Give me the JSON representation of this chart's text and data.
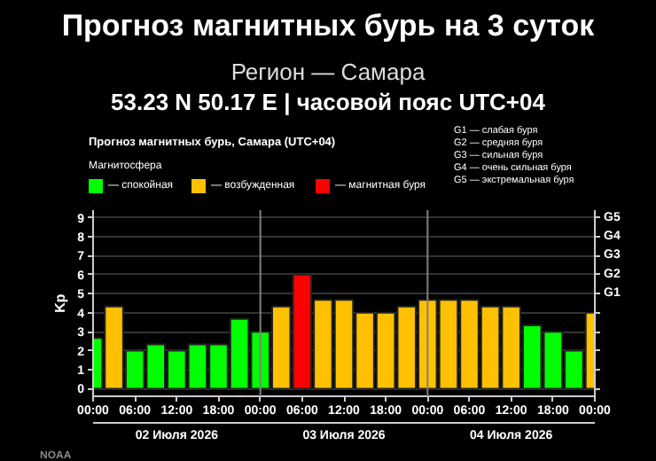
{
  "chart_data": {
    "type": "bar",
    "title": "Прогноз магнитных бурь, Самара (UTC+04)",
    "legend_title": "Магнитосфера",
    "ylabel": "Kp",
    "x": [
      "2026-07-02T00:00",
      "2026-07-02T03:00",
      "2026-07-02T06:00",
      "2026-07-02T09:00",
      "2026-07-02T12:00",
      "2026-07-02T15:00",
      "2026-07-02T18:00",
      "2026-07-02T21:00",
      "2026-07-03T00:00",
      "2026-07-03T03:00",
      "2026-07-03T06:00",
      "2026-07-03T09:00",
      "2026-07-03T12:00",
      "2026-07-03T15:00",
      "2026-07-03T18:00",
      "2026-07-03T21:00",
      "2026-07-04T00:00",
      "2026-07-04T03:00",
      "2026-07-04T06:00",
      "2026-07-04T09:00",
      "2026-07-04T12:00",
      "2026-07-04T15:00",
      "2026-07-04T18:00",
      "2026-07-04T21:00",
      "2026-07-05T00:00"
    ],
    "series": [
      {
        "name": "— спокойная",
        "color": "#00ff00",
        "values": [
          2.67,
          null,
          2,
          2.33,
          2,
          2.33,
          2.33,
          3.67,
          3,
          null,
          null,
          null,
          null,
          null,
          null,
          null,
          null,
          null,
          null,
          null,
          null,
          3.33,
          3,
          2,
          null
        ]
      },
      {
        "name": "— возбужденная",
        "color": "#ffc000",
        "values": [
          null,
          4.33,
          null,
          null,
          null,
          null,
          null,
          null,
          null,
          4.33,
          null,
          4.67,
          4.67,
          4,
          4,
          4.33,
          4.67,
          4.67,
          4.67,
          4.33,
          4.33,
          null,
          null,
          null,
          4
        ]
      },
      {
        "name": "— магнитная буря",
        "color": "#ff0000",
        "values": [
          null,
          null,
          null,
          null,
          null,
          null,
          null,
          null,
          null,
          null,
          6,
          null,
          null,
          null,
          null,
          null,
          null,
          null,
          null,
          null,
          null,
          null,
          null,
          null,
          null
        ]
      }
    ],
    "xlim": [
      "2026-07-02T00:00",
      "2026-07-05T00:00"
    ],
    "xticks": [
      {
        "value": "2026-07-02T00:00",
        "label": "00:00"
      },
      {
        "value": "2026-07-02T06:00",
        "label": "06:00"
      },
      {
        "value": "2026-07-02T12:00",
        "label": "12:00"
      },
      {
        "value": "2026-07-02T18:00",
        "label": "18:00"
      },
      {
        "value": "2026-07-03T00:00",
        "label": "00:00"
      },
      {
        "value": "2026-07-03T06:00",
        "label": "06:00"
      },
      {
        "value": "2026-07-03T12:00",
        "label": "12:00"
      },
      {
        "value": "2026-07-03T18:00",
        "label": "18:00"
      },
      {
        "value": "2026-07-04T00:00",
        "label": "00:00"
      },
      {
        "value": "2026-07-04T06:00",
        "label": "06:00"
      },
      {
        "value": "2026-07-04T12:00",
        "label": "12:00"
      },
      {
        "value": "2026-07-04T18:00",
        "label": "18:00"
      },
      {
        "value": "2026-07-05T00:00",
        "label": "00:00"
      }
    ],
    "ylim": [
      -0.4,
      9.4
    ],
    "yticks": [
      0,
      1,
      2,
      3,
      4,
      5,
      6,
      7,
      8,
      9
    ],
    "ref_lines": [
      {
        "axis": "x",
        "value": "2026-07-03T00:00",
        "label": null,
        "color": "#808080"
      },
      {
        "axis": "x",
        "value": "2026-07-04T00:00",
        "label": null,
        "color": "#808080"
      }
    ],
    "grid": "y",
    "legend": "top left",
    "annotations": [
      "Прогноз магнитных бурь на 3 суток",
      "Регион — Самара",
      "53.23 N 50.17 E | часовой пояс UTC+04",
      "G1 — слабая буря",
      "G2 — средняя буря",
      "G3 — сильная буря",
      "G4 — очень сильная буря",
      "G5 — экстремальная буря",
      "G1",
      "G2",
      "G3",
      "G4",
      "G5",
      "02 Июля 2026",
      "03 Июля 2026",
      "04 Июля 2026",
      "NOAA"
    ]
  }
}
